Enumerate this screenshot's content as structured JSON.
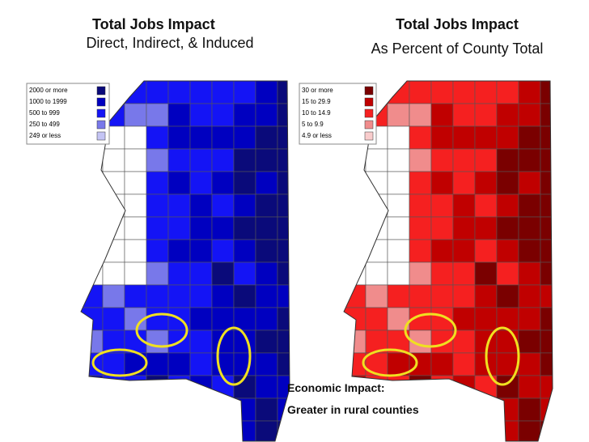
{
  "left_panel": {
    "title": "Total Jobs Impact",
    "subtitle": "Direct, Indirect, & Induced",
    "legend": [
      {
        "label": "2000 or more",
        "color": "#0a0a7a"
      },
      {
        "label": "1000 to 1999",
        "color": "#0000c0"
      },
      {
        "label": "500 to 999",
        "color": "#1414f5"
      },
      {
        "label": "250 to 499",
        "color": "#7878ea"
      },
      {
        "label": "249 or less",
        "color": "#c4c4f4"
      }
    ]
  },
  "right_panel": {
    "title": "Total Jobs Impact",
    "subtitle": "As Percent of County Total",
    "legend": [
      {
        "label": "30 or more",
        "color": "#7a0000"
      },
      {
        "label": "15 to 29.9",
        "color": "#c00000"
      },
      {
        "label": "10 to 14.9",
        "color": "#f52020"
      },
      {
        "label": "5 to 9.9",
        "color": "#f08c8c"
      },
      {
        "label": "4.9 or less",
        "color": "#f9cccc"
      }
    ]
  },
  "annotation": {
    "line1": "Economic Impact:",
    "line2": "Greater in rural counties"
  }
}
